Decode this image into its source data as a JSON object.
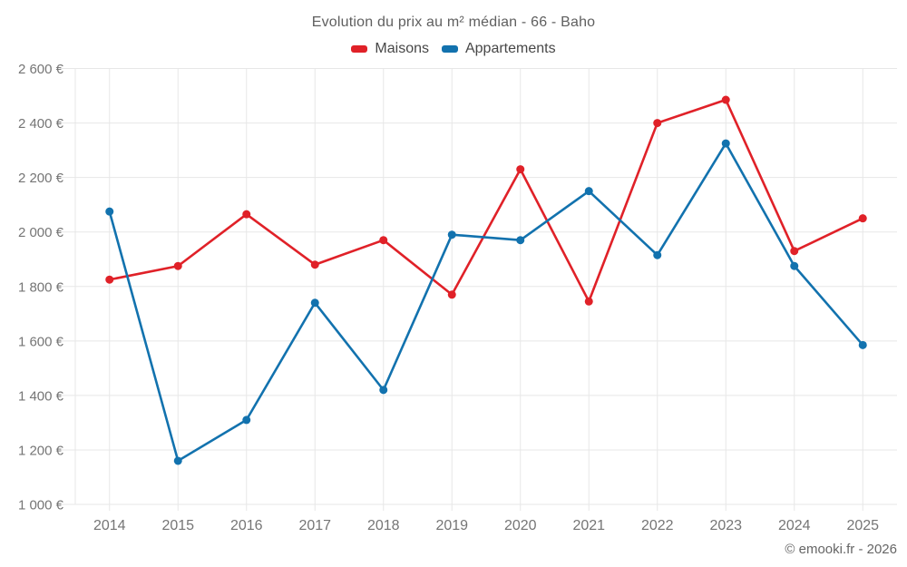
{
  "title": "Evolution du prix au m² médian - 66 - Baho",
  "legend": {
    "items": [
      {
        "label": "Maisons",
        "color": "#e02128"
      },
      {
        "label": "Appartements",
        "color": "#1272ae"
      }
    ]
  },
  "footer": {
    "credit": "© emooki.fr - 2026"
  },
  "axis": {
    "ytick_labels": [
      "1 000 €",
      "1 200 €",
      "1 400 €",
      "1 600 €",
      "1 800 €",
      "2 000 €",
      "2 200 €",
      "2 400 €",
      "2 600 €"
    ],
    "xtick_labels": [
      "2014",
      "2015",
      "2016",
      "2017",
      "2018",
      "2019",
      "2020",
      "2021",
      "2022",
      "2023",
      "2024",
      "2025"
    ]
  },
  "chart_data": {
    "type": "line",
    "categories": [
      "2014",
      "2015",
      "2016",
      "2017",
      "2018",
      "2019",
      "2020",
      "2021",
      "2022",
      "2023",
      "2024",
      "2025"
    ],
    "series": [
      {
        "name": "Maisons",
        "color": "#e02128",
        "values": [
          1825,
          1875,
          2065,
          1880,
          1970,
          1770,
          2230,
          1745,
          2400,
          2485,
          1930,
          2050
        ]
      },
      {
        "name": "Appartements",
        "color": "#1272ae",
        "values": [
          2075,
          1160,
          1310,
          1740,
          1420,
          1990,
          1970,
          2150,
          1915,
          2325,
          1875,
          1585
        ]
      }
    ],
    "title": "Evolution du prix au m² médian - 66 - Baho",
    "xlabel": "",
    "ylabel": "",
    "ylim": [
      1000,
      2600
    ],
    "ytick_step": 200,
    "ytick_suffix": " €",
    "grid": true,
    "legend_position": "top",
    "marker": "circle"
  }
}
